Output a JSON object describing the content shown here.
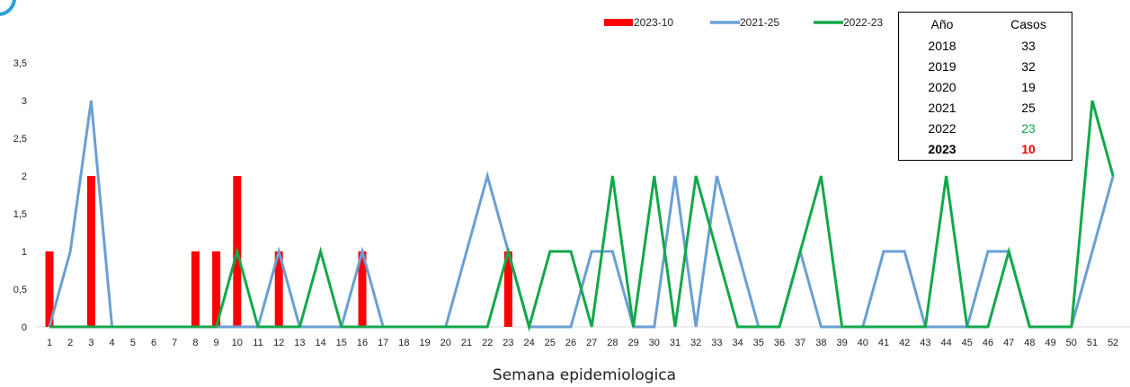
{
  "chart_data": {
    "type": "bar+line",
    "xlabel": "Semana epidemiologica",
    "ylabel": "",
    "ylim": [
      0,
      3.5
    ],
    "yticks": [
      "0",
      "0,5",
      "1",
      "1,5",
      "2",
      "2,5",
      "3",
      "3,5"
    ],
    "categories": [
      "1",
      "2",
      "3",
      "4",
      "5",
      "6",
      "7",
      "8",
      "9",
      "10",
      "11",
      "12",
      "13",
      "14",
      "15",
      "16",
      "17",
      "18",
      "19",
      "20",
      "21",
      "22",
      "23",
      "24",
      "25",
      "26",
      "27",
      "28",
      "29",
      "30",
      "31",
      "32",
      "33",
      "34",
      "35",
      "36",
      "37",
      "38",
      "39",
      "40",
      "41",
      "42",
      "43",
      "44",
      "45",
      "46",
      "47",
      "48",
      "49",
      "50",
      "51",
      "52"
    ],
    "series": [
      {
        "name": "2023-10",
        "kind": "bar",
        "color": "#ff0000",
        "values": [
          1,
          0,
          2,
          0,
          0,
          0,
          0,
          1,
          1,
          2,
          0,
          1,
          0,
          0,
          0,
          1,
          0,
          0,
          0,
          0,
          0,
          0,
          1,
          0,
          0,
          0,
          0,
          0,
          0,
          0,
          0,
          0,
          0,
          0,
          0,
          0,
          0,
          0,
          0,
          0,
          0,
          0,
          0,
          0,
          0,
          0,
          0,
          0,
          0,
          0,
          0,
          0
        ]
      },
      {
        "name": "2021-25",
        "kind": "line",
        "color": "#6a9fd4",
        "values": [
          0,
          1,
          3,
          0,
          0,
          0,
          0,
          0,
          0,
          0,
          0,
          1,
          0,
          0,
          0,
          1,
          0,
          0,
          0,
          0,
          1,
          2,
          1,
          0,
          0,
          0,
          1,
          1,
          0,
          0,
          2,
          0,
          2,
          1,
          0,
          0,
          1,
          0,
          0,
          0,
          1,
          1,
          0,
          0,
          0,
          1,
          1,
          0,
          0,
          0,
          1,
          2
        ]
      },
      {
        "name": "2022-23",
        "kind": "line",
        "color": "#12a84a",
        "values": [
          0,
          0,
          0,
          0,
          0,
          0,
          0,
          0,
          0,
          1,
          0,
          0,
          0,
          1,
          0,
          0,
          0,
          0,
          0,
          0,
          0,
          0,
          1,
          0,
          1,
          1,
          0,
          2,
          0,
          2,
          0,
          2,
          1,
          0,
          0,
          0,
          1,
          2,
          0,
          0,
          0,
          0,
          0,
          2,
          0,
          0,
          1,
          0,
          0,
          0,
          3,
          2
        ]
      }
    ],
    "legend_position": "top"
  },
  "table": {
    "headers": [
      "Año",
      "Casos"
    ],
    "rows": [
      {
        "year": "2018",
        "cases": "33"
      },
      {
        "year": "2019",
        "cases": "32"
      },
      {
        "year": "2020",
        "cases": "19"
      },
      {
        "year": "2021",
        "cases": "25"
      },
      {
        "year": "2022",
        "cases": "23"
      },
      {
        "year": "2023",
        "cases": "10"
      }
    ],
    "highlight_2022_color": "#12a84a",
    "highlight_2023_color": "#ff0000"
  },
  "logo": {
    "icon": "circle-logo-icon",
    "color": "#2a9fd6"
  }
}
